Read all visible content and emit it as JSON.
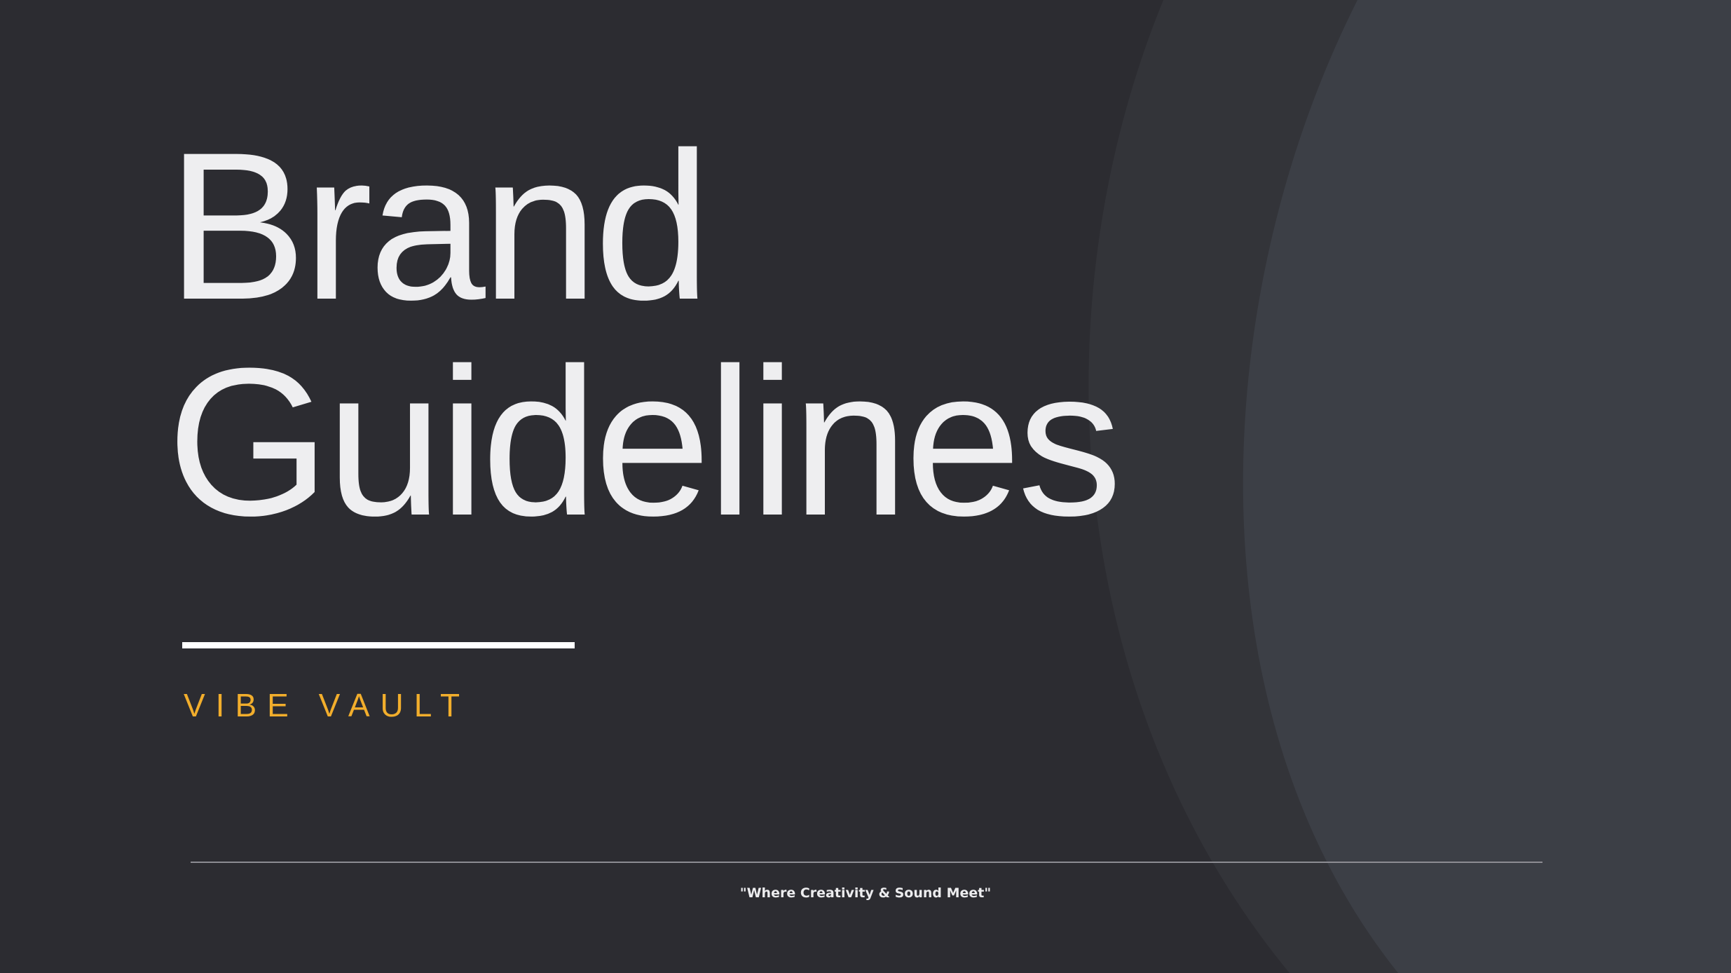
{
  "slide": {
    "title_line_1": "Brand",
    "title_line_2": "Guidelines",
    "brand_name": "VIBE VAULT",
    "tagline": "\"Where Creativity & Sound Meet\""
  },
  "colors": {
    "background": "#2c2c31",
    "arc_mid": "#333439",
    "arc_light": "#3c3f46",
    "title_text": "#eeeef0",
    "accent_yellow": "#f2ae2c",
    "rule": "#ffffff"
  }
}
